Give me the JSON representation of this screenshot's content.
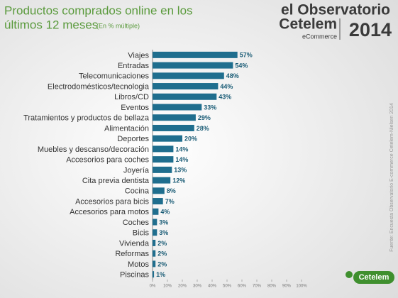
{
  "chart_data": {
    "type": "barh",
    "title_lines": [
      "Productos comprados online en los",
      "últimos 12 meses"
    ],
    "subtitle": "(En % múltiple)",
    "logo": {
      "line1": "el Observatorio",
      "line2": "Cetelem",
      "line3": "eCommerce",
      "year": "2014",
      "badge": "Cetelem"
    },
    "source": "Fuente: Encuesta Observatorio E-commerce Cetelem-Nielsen 2014",
    "categories": [
      "Viajes",
      "Entradas",
      "Telecomunicaciones",
      "Electrodomésticos/tecnologia",
      "Libros/CD",
      "Eventos",
      "Tratamientos y productos de bellaza",
      "Alimentación",
      "Deportes",
      "Muebles y descanso/decoración",
      "Accesorios para coches",
      "Joyería",
      "Cita previa dentista",
      "Cocina",
      "Accesorios para bicis",
      "Accesorios para motos",
      "Coches",
      "Bicis",
      "Vivienda",
      "Reformas",
      "Motos",
      "Piscinas"
    ],
    "values": [
      57,
      54,
      48,
      44,
      43,
      33,
      29,
      28,
      20,
      14,
      14,
      13,
      12,
      8,
      7,
      4,
      3,
      3,
      2,
      2,
      2,
      1
    ],
    "value_labels": [
      "57%",
      "54%",
      "48%",
      "44%",
      "43%",
      "33%",
      "29%",
      "28%",
      "20%",
      "14%",
      "14%",
      "13%",
      "12%",
      "8%",
      "7%",
      "4%",
      "3%",
      "3%",
      "2%",
      "2%",
      "2%",
      "1%"
    ],
    "color": "#1f6e8e",
    "xlim": [
      0,
      100
    ],
    "xticks": [
      {
        "value": 0,
        "label": "0%"
      },
      {
        "value": 10,
        "label": "10%"
      },
      {
        "value": 20,
        "label": "20%"
      },
      {
        "value": 30,
        "label": "30%"
      },
      {
        "value": 40,
        "label": "40%"
      },
      {
        "value": 50,
        "label": "50%"
      },
      {
        "value": 60,
        "label": "60%"
      },
      {
        "value": 70,
        "label": "70%"
      },
      {
        "value": 80,
        "label": "80%"
      },
      {
        "value": 90,
        "label": "90%"
      },
      {
        "value": 100,
        "label": "100%"
      }
    ]
  }
}
